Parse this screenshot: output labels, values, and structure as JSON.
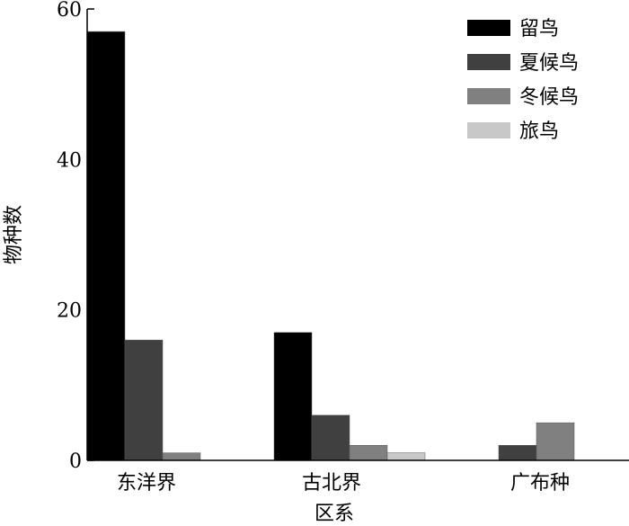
{
  "chart_data": {
    "type": "bar",
    "categories": [
      "东洋界",
      "古北界",
      "广布种"
    ],
    "series": [
      {
        "name": "留鸟",
        "values": [
          57,
          17,
          0
        ],
        "color": "#000000"
      },
      {
        "name": "夏候鸟",
        "values": [
          16,
          6,
          2
        ],
        "color": "#404040"
      },
      {
        "name": "冬候鸟",
        "values": [
          1,
          2,
          5
        ],
        "color": "#808080"
      },
      {
        "name": "旅鸟",
        "values": [
          0,
          1,
          0
        ],
        "color": "#c8c8c8"
      }
    ],
    "title": "",
    "xlabel": "区系",
    "ylabel": "物种数",
    "ylim": [
      0,
      60
    ],
    "yticks": [
      0,
      20,
      40,
      60
    ],
    "grid": false,
    "legend_position": "top-right"
  }
}
